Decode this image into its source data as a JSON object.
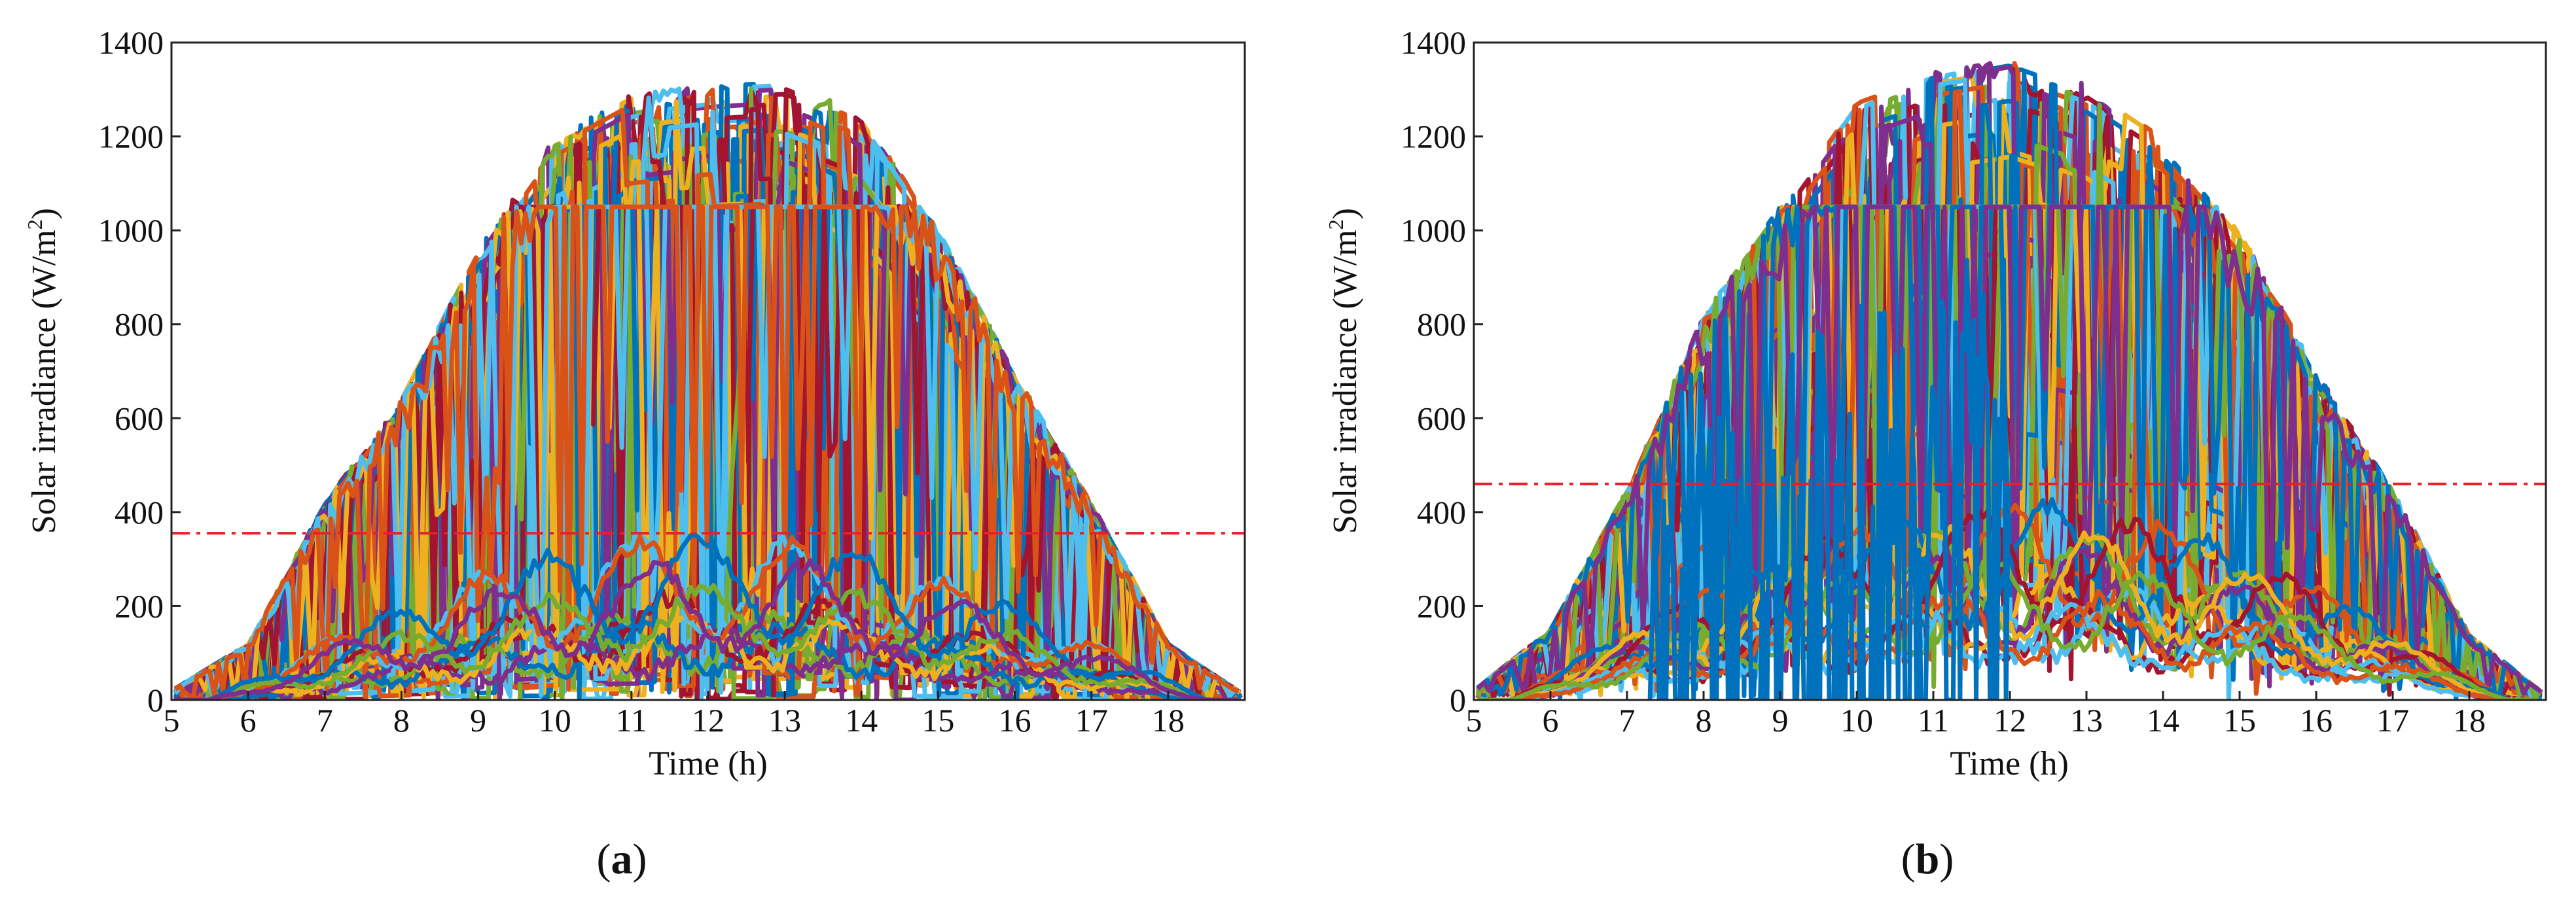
{
  "figure": {
    "panels": [
      "a",
      "b"
    ]
  },
  "colors": {
    "series_palette": [
      "#0072BD",
      "#D95319",
      "#EDB120",
      "#7E2F8E",
      "#77AC30",
      "#4DBEEE",
      "#A2142F"
    ],
    "threshold": "#E8202A",
    "axis": "#222222"
  },
  "chart_data": [
    {
      "type": "line",
      "panel_label": "a",
      "xlabel": "Time (h)",
      "ylabel": "Solar irradiance (W/m²)",
      "ylabel_main": "Solar irradiance (W/m",
      "ylabel_sup": "2",
      "ylabel_end": ")",
      "xlim": [
        5,
        19
      ],
      "ylim": [
        0,
        1400
      ],
      "xticks": [
        5,
        6,
        7,
        8,
        9,
        10,
        11,
        12,
        13,
        14,
        15,
        16,
        17,
        18
      ],
      "yticks": [
        0,
        200,
        400,
        600,
        800,
        1000,
        1200,
        1400
      ],
      "threshold": 355,
      "series_description": "Many daily solar irradiance profiles (roughly 5:00 to 19:00); highly intermittent (cloudy) days oscillating between ~0 and a clear-sky envelope peaking ~1330 W/m² near 13 h, several profiles capped near 1050 W/m², plus low overcast profiles around 100-400 W/m².",
      "envelope": {
        "x": [
          5,
          6,
          7,
          8,
          9,
          10,
          11,
          12,
          13,
          14,
          15,
          16,
          17,
          18,
          19
        ],
        "y": [
          20,
          120,
          420,
          640,
          960,
          1200,
          1290,
          1310,
          1320,
          1250,
          1000,
          700,
          420,
          120,
          10
        ]
      },
      "series": []
    },
    {
      "type": "line",
      "panel_label": "b",
      "xlabel": "Time (h)",
      "ylabel": "Solar irradiance (W/m²)",
      "ylabel_main": "Solar irradiance (W/m",
      "ylabel_sup": "2",
      "ylabel_end": ")",
      "xlim": [
        5,
        19
      ],
      "ylim": [
        0,
        1400
      ],
      "xticks": [
        5,
        6,
        7,
        8,
        9,
        10,
        11,
        12,
        13,
        14,
        15,
        16,
        17,
        18
      ],
      "yticks": [
        0,
        200,
        400,
        600,
        800,
        1000,
        1200,
        1400
      ],
      "threshold": 460,
      "series_description": "Many daily solar irradiance profiles; dense intermittent band mostly between ~200 and the clear-sky envelope peaking ~1370 W/m² around 11.5-12.5 h, several capped near 1050 W/m², with some sharp dips to 0 between 7.5 and 12 h.",
      "envelope": {
        "x": [
          5,
          6,
          7,
          8,
          9,
          10,
          11,
          12,
          13,
          14,
          15,
          16,
          17,
          18,
          19
        ],
        "y": [
          20,
          150,
          450,
          820,
          1050,
          1280,
          1340,
          1370,
          1310,
          1200,
          1000,
          700,
          450,
          140,
          10
        ]
      },
      "series": []
    }
  ]
}
